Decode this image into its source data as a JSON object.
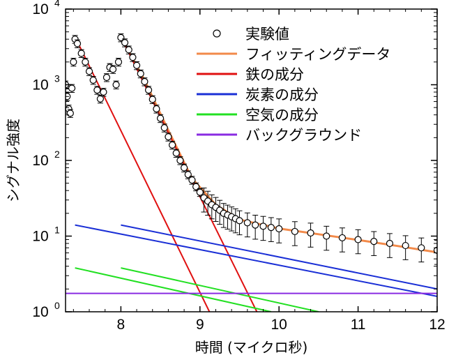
{
  "chart_data": {
    "type": "scatter",
    "xlabel": "時間 (マイクロ秒)",
    "ylabel": "シグナル強度",
    "xlim": [
      7.3,
      12
    ],
    "ylim": [
      1,
      10000
    ],
    "yscale": "log",
    "x_ticks": [
      {
        "value": 8,
        "label": "8"
      },
      {
        "value": 9,
        "label": "9"
      },
      {
        "value": 10,
        "label": "10"
      },
      {
        "value": 11,
        "label": "11"
      },
      {
        "value": 12,
        "label": "12"
      }
    ],
    "y_ticks": [
      {
        "value": 1,
        "base": "10",
        "exp": "0"
      },
      {
        "value": 10,
        "base": "10",
        "exp": "1"
      },
      {
        "value": 100,
        "base": "10",
        "exp": "2"
      },
      {
        "value": 1000,
        "base": "10",
        "exp": "3"
      },
      {
        "value": 10000,
        "base": "10",
        "exp": "4"
      }
    ],
    "legend_position": "top-right",
    "series": [
      {
        "name": "実験値",
        "kind": "points",
        "color": "#000000",
        "points": [
          [
            7.3,
            1000
          ],
          [
            7.32,
            700
          ],
          [
            7.34,
            480
          ],
          [
            7.36,
            420
          ],
          [
            7.38,
            900
          ],
          [
            7.4,
            2000
          ],
          [
            7.42,
            4000
          ],
          [
            7.45,
            3500
          ],
          [
            7.5,
            2600
          ],
          [
            7.55,
            2000
          ],
          [
            7.6,
            1500
          ],
          [
            7.65,
            1150
          ],
          [
            7.7,
            850
          ],
          [
            7.74,
            650
          ],
          [
            7.78,
            800
          ],
          [
            7.82,
            1250
          ],
          [
            7.86,
            1700
          ],
          [
            7.9,
            1600
          ],
          [
            7.94,
            1000
          ],
          [
            7.97,
            2000
          ],
          [
            8.0,
            4200
          ],
          [
            8.05,
            3600
          ],
          [
            8.1,
            2900
          ],
          [
            8.15,
            2300
          ],
          [
            8.2,
            1800
          ],
          [
            8.25,
            1400
          ],
          [
            8.3,
            1100
          ],
          [
            8.35,
            850
          ],
          [
            8.4,
            640
          ],
          [
            8.45,
            480
          ],
          [
            8.5,
            360
          ],
          [
            8.55,
            270
          ],
          [
            8.6,
            205
          ],
          [
            8.65,
            160
          ],
          [
            8.7,
            125
          ],
          [
            8.75,
            100
          ],
          [
            8.8,
            80
          ],
          [
            8.85,
            65
          ],
          [
            8.9,
            55
          ],
          [
            8.95,
            45
          ],
          [
            9.0,
            38
          ],
          [
            9.05,
            32
          ],
          [
            9.1,
            29
          ],
          [
            9.15,
            26
          ],
          [
            9.2,
            24
          ],
          [
            9.25,
            22
          ],
          [
            9.3,
            20
          ],
          [
            9.35,
            19
          ],
          [
            9.4,
            18
          ],
          [
            9.45,
            17
          ],
          [
            9.5,
            16
          ],
          [
            9.6,
            15
          ],
          [
            9.7,
            14
          ],
          [
            9.8,
            13.5
          ],
          [
            9.9,
            13
          ],
          [
            10.0,
            12.5
          ],
          [
            10.2,
            11.5
          ],
          [
            10.4,
            11
          ],
          [
            10.6,
            10
          ],
          [
            10.8,
            9.5
          ],
          [
            11.0,
            9
          ],
          [
            11.2,
            8.5
          ],
          [
            11.4,
            8
          ],
          [
            11.6,
            7.5
          ],
          [
            11.8,
            7
          ],
          [
            12.0,
            6.5
          ]
        ]
      },
      {
        "name": "フィッティングデータ",
        "kind": "line",
        "color": "#f28a4a",
        "x": [
          8.0,
          8.3,
          8.6,
          8.9,
          9.2,
          9.5,
          10.0,
          10.5,
          11.0,
          11.5,
          12.0
        ],
        "values": [
          4300,
          1150,
          250,
          58,
          26,
          16.5,
          12.6,
          10.6,
          8.9,
          7.4,
          6.1
        ]
      },
      {
        "name": "鉄の成分",
        "kind": "line",
        "color": "#e01010",
        "segments": [
          {
            "x": [
              7.42,
              9.12
            ],
            "values": [
              4300,
              1
            ]
          },
          {
            "x": [
              8.0,
              9.72
            ],
            "values": [
              4300,
              1
            ]
          }
        ]
      },
      {
        "name": "炭素の成分",
        "kind": "line",
        "color": "#1a2fd6",
        "segments": [
          {
            "x": [
              7.42,
              12.0
            ],
            "values": [
              14,
              1.6
            ]
          },
          {
            "x": [
              8.0,
              12.0
            ],
            "values": [
              14,
              2.0
            ]
          }
        ]
      },
      {
        "name": "空気の成分",
        "kind": "line",
        "color": "#22e022",
        "segments": [
          {
            "x": [
              7.42,
              9.9
            ],
            "values": [
              3.8,
              1
            ]
          },
          {
            "x": [
              8.0,
              10.5
            ],
            "values": [
              3.8,
              1
            ]
          }
        ]
      },
      {
        "name": "バックグラウンド",
        "kind": "line",
        "color": "#8a2be2",
        "segments": [
          {
            "x": [
              7.3,
              12.0
            ],
            "values": [
              1.75,
              1.75
            ]
          }
        ]
      }
    ]
  }
}
